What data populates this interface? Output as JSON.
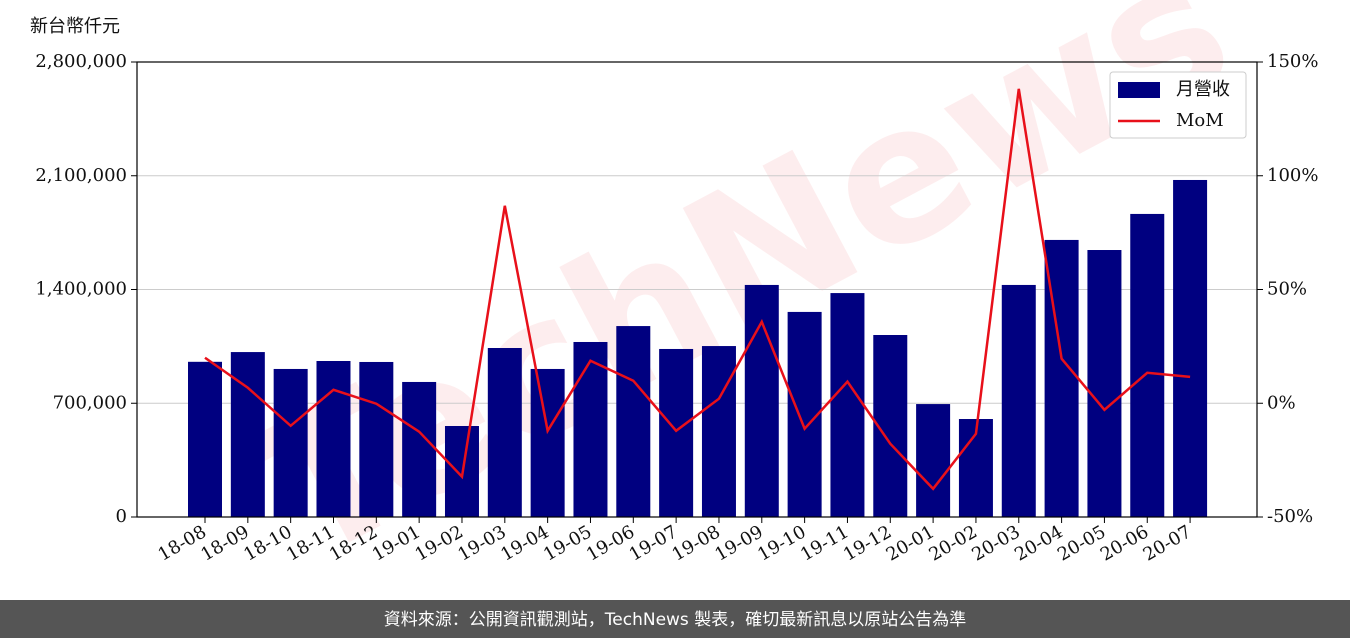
{
  "chart_data": {
    "type": "bar-line",
    "ylabel": "新台幣仟元",
    "watermark": "TechNews",
    "footer": "資料來源：公開資訊觀測站，TechNews 製表，確切最新訊息以原站公告為準",
    "categories": [
      "18-08",
      "18-09",
      "18-10",
      "18-11",
      "18-12",
      "19-01",
      "19-02",
      "19-03",
      "19-04",
      "19-05",
      "19-06",
      "19-07",
      "19-08",
      "19-09",
      "19-10",
      "19-11",
      "19-12",
      "20-01",
      "20-02",
      "20-03",
      "20-04",
      "20-05",
      "20-06",
      "20-07"
    ],
    "series": [
      {
        "name": "月營收",
        "type": "bar",
        "color": "#000080",
        "values": [
          955000,
          1015000,
          911000,
          960000,
          954000,
          831000,
          560000,
          1040000,
          911000,
          1077000,
          1175000,
          1034000,
          1052000,
          1428000,
          1262000,
          1378000,
          1120000,
          695000,
          603000,
          1428000,
          1705000,
          1643000,
          1865000,
          2074000
        ]
      },
      {
        "name": "MoM",
        "type": "line",
        "axis": "y2",
        "color": "#e8101a",
        "values": [
          20,
          6.8,
          -9.9,
          5.9,
          -0.2,
          -12.5,
          -32.3,
          86.8,
          -12.1,
          18.7,
          9.9,
          -12.1,
          2.0,
          35.8,
          -11.2,
          9.5,
          -17.8,
          -37.6,
          -13.4,
          138.2,
          19.6,
          -2.9,
          13.4,
          11.6
        ]
      }
    ],
    "ylim": [
      0,
      2800000
    ],
    "yticks": [
      0,
      {
        "value": 700000,
        "label": "700,000"
      },
      {
        "value": 1400000,
        "label": "1,400,000"
      },
      {
        "value": 2100000,
        "label": "2,100,000"
      },
      {
        "value": 2800000,
        "label": "2,800,000"
      }
    ],
    "y2lim": [
      -50,
      150
    ],
    "y2ticks": [
      {
        "value": -50,
        "label": "-50%"
      },
      {
        "value": 0,
        "label": "0%"
      },
      {
        "value": 50,
        "label": "50%"
      },
      {
        "value": 100,
        "label": "100%"
      },
      {
        "value": 150,
        "label": "150%"
      }
    ],
    "grid": true,
    "legend": "upper right"
  }
}
